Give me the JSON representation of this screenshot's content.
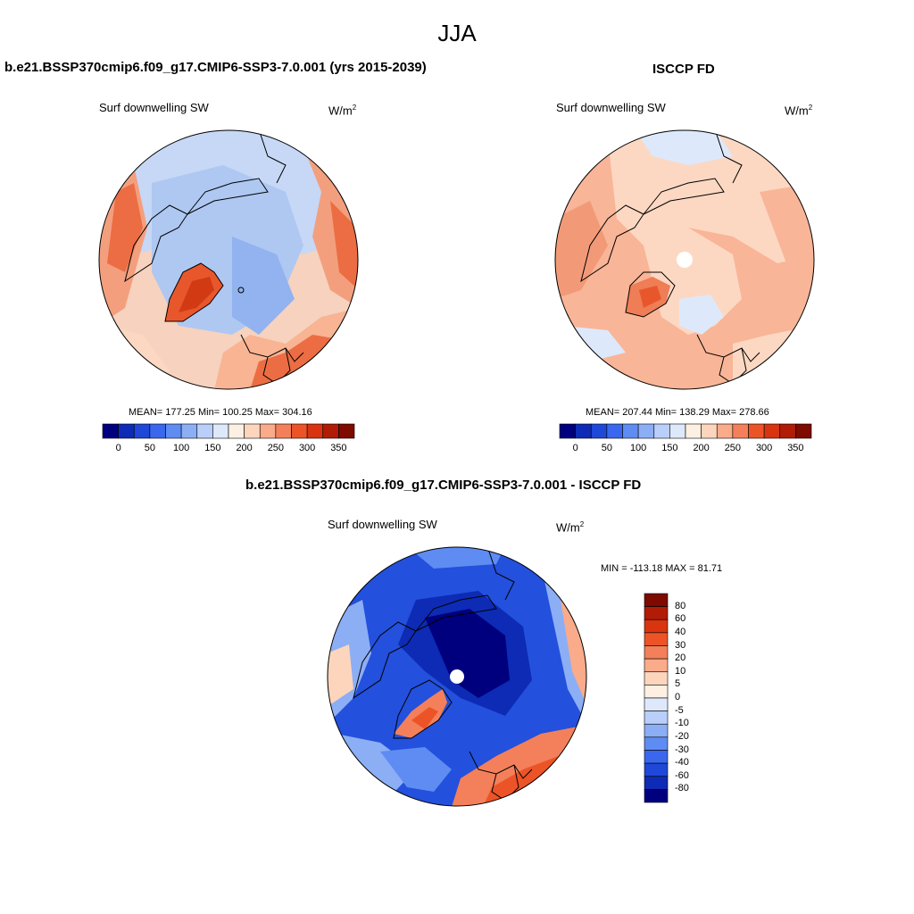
{
  "page": {
    "season_title": "JJA"
  },
  "panels": {
    "model": {
      "title": "b.e21.BSSP370cmip6.f09_g17.CMIP6-SSP3-7.0.001 (yrs 2015-2039)",
      "variable": "Surf downwelling SW",
      "units_base": "W/m",
      "units_exp": "2",
      "stats": "MEAN= 177.25  Min= 100.25  Max= 304.16"
    },
    "obs": {
      "title": "ISCCP FD",
      "variable": "Surf downwelling SW",
      "units_base": "W/m",
      "units_exp": "2",
      "stats": "MEAN= 207.44  Min= 138.29  Max= 278.66"
    },
    "diff": {
      "title": "b.e21.BSSP370cmip6.f09_g17.CMIP6-SSP3-7.0.001 - ISCCP FD",
      "variable": "Surf downwelling SW",
      "units_base": "W/m",
      "units_exp": "2",
      "stats": "MIN = -113.18 MAX =  81.71"
    }
  },
  "colorbar_abs": {
    "colors": [
      "#00007f",
      "#0d2bb4",
      "#1f48d8",
      "#3a67ee",
      "#5e8cf2",
      "#8caef5",
      "#b9cffa",
      "#dde9fb",
      "#fdf0e2",
      "#fcd5bc",
      "#f9ab8a",
      "#f3805a",
      "#ec5427",
      "#d83410",
      "#b01c06",
      "#7e0a00"
    ],
    "ticks": [
      "0",
      "50",
      "100",
      "150",
      "200",
      "250",
      "300",
      "350"
    ]
  },
  "colorbar_diff": {
    "colors": [
      "#7e0a00",
      "#b01c06",
      "#d83410",
      "#ec5427",
      "#f3805a",
      "#f9ab8a",
      "#fcd5bc",
      "#fdf0e2",
      "#dde9fb",
      "#b9cffa",
      "#8caef5",
      "#5e8cf2",
      "#3a67ee",
      "#1f48d8",
      "#0d2bb4",
      "#00007f"
    ],
    "ticks": [
      "80",
      "60",
      "40",
      "30",
      "20",
      "10",
      "5",
      "0",
      "-5",
      "-10",
      "-20",
      "-30",
      "-40",
      "-60",
      "-80"
    ]
  }
}
